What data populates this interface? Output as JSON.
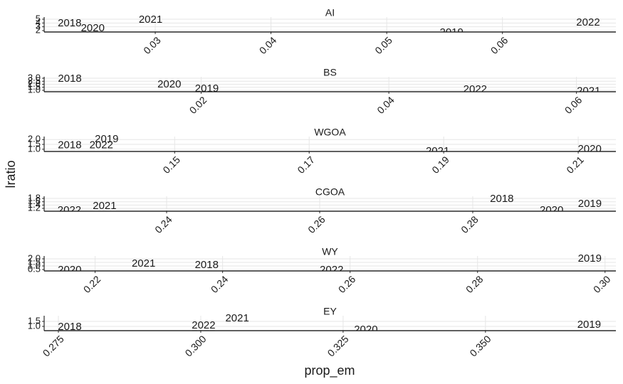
{
  "chart_data": [
    {
      "type": "scatter",
      "title": "AI",
      "labels": [
        "2018",
        "2020",
        "2021",
        "2019",
        "2022"
      ],
      "x": [
        0.0226,
        0.0246,
        0.0296,
        0.0556,
        0.0674
      ],
      "values": [
        3.9,
        2.56,
        4.8,
        1.4,
        4.1
      ],
      "color": "#000000",
      "xlim": [
        0.0204,
        0.0698
      ],
      "ylim": [
        1.62,
        5.56
      ],
      "xticks": [
        0.03,
        0.04,
        0.05,
        0.06
      ],
      "yticks": [
        2,
        3,
        4,
        5
      ],
      "grid": true
    },
    {
      "type": "scatter",
      "title": "BS",
      "labels": [
        "2018",
        "2020",
        "2019",
        "2022",
        "2021"
      ],
      "x": [
        0.006,
        0.0166,
        0.0206,
        0.0492,
        0.0613
      ],
      "values": [
        2.88,
        1.94,
        1.24,
        1.12,
        0.8
      ],
      "color": "#000000",
      "xlim": [
        0.00326,
        0.0642
      ],
      "ylim": [
        0.76,
        3.24
      ],
      "xticks": [
        0.02,
        0.04,
        0.06
      ],
      "yticks": [
        {
          "value": 1,
          "label": "1.0"
        },
        1.5,
        {
          "value": 2,
          "label": "2.0"
        },
        2.5,
        {
          "value": 3,
          "label": "3.0"
        }
      ],
      "grid": true
    },
    {
      "type": "scatter",
      "title": "WGOA",
      "labels": [
        "2018",
        "2022",
        "2019",
        "2021",
        "2020"
      ],
      "x": [
        0.1344,
        0.1391,
        0.1399,
        0.1891,
        0.2117
      ],
      "values": [
        1.38,
        1.38,
        2.0,
        0.75,
        1.0
      ],
      "color": "#000000",
      "xlim": [
        0.1306,
        0.2156
      ],
      "ylim": [
        0.77,
        2.31
      ],
      "xticks": [
        0.15,
        0.17,
        0.19,
        0.21
      ],
      "yticks": [
        {
          "value": 1,
          "label": "1.0"
        },
        1.5,
        {
          "value": 2,
          "label": "2.0"
        }
      ],
      "grid": true
    },
    {
      "type": "scatter",
      "title": "CGOA",
      "labels": [
        "2022",
        "2021",
        "2018",
        "2020",
        "2019"
      ],
      "x": [
        0.2273,
        0.2319,
        0.2838,
        0.2903,
        0.2953
      ],
      "values": [
        1.07,
        1.33,
        1.76,
        1.07,
        1.46
      ],
      "color": "#000000",
      "xlim": [
        0.224,
        0.2987
      ],
      "ylim": [
        1.03,
        1.93
      ],
      "xticks": [
        0.24,
        0.26,
        0.28
      ],
      "yticks": [
        1.2,
        1.4,
        1.6,
        1.8
      ],
      "grid": true
    },
    {
      "type": "scatter",
      "title": "WY",
      "labels": [
        "2020",
        "2021",
        "2018",
        "2022",
        "2019"
      ],
      "x": [
        0.216,
        0.2276,
        0.2375,
        0.2571,
        0.2976
      ],
      "values": [
        0.4,
        1.3,
        1.1,
        0.4,
        2.0
      ],
      "color": "#000000",
      "xlim": [
        0.212,
        0.3017
      ],
      "ylim": [
        0.3,
        2.4
      ],
      "xticks": [
        0.22,
        0.24,
        0.26,
        0.28,
        {
          "value": 0.3,
          "label": "0.30"
        }
      ],
      "yticks": [
        0.5,
        {
          "value": 1,
          "label": "1.0"
        },
        1.5,
        {
          "value": 2,
          "label": "2.0"
        }
      ],
      "grid": true
    },
    {
      "type": "scatter",
      "title": "EY",
      "labels": [
        "2018",
        "2022",
        "2021",
        "2020",
        "2019"
      ],
      "x": [
        0.277,
        0.3005,
        0.3064,
        0.329,
        0.3682
      ],
      "values": [
        0.93,
        1.07,
        1.79,
        0.64,
        1.14
      ],
      "color": "#000000",
      "xlim": [
        0.2725,
        0.3729
      ],
      "ylim": [
        0.57,
        2.07
      ],
      "xticks": [
        0.275,
        {
          "value": 0.3,
          "label": "0.300"
        },
        0.325,
        {
          "value": 0.35,
          "label": "0.350"
        }
      ],
      "yticks": [
        {
          "value": 1,
          "label": "1.0"
        },
        1.5
      ],
      "grid": true
    }
  ],
  "xlabel": "prop_em",
  "ylabel": "lratio"
}
